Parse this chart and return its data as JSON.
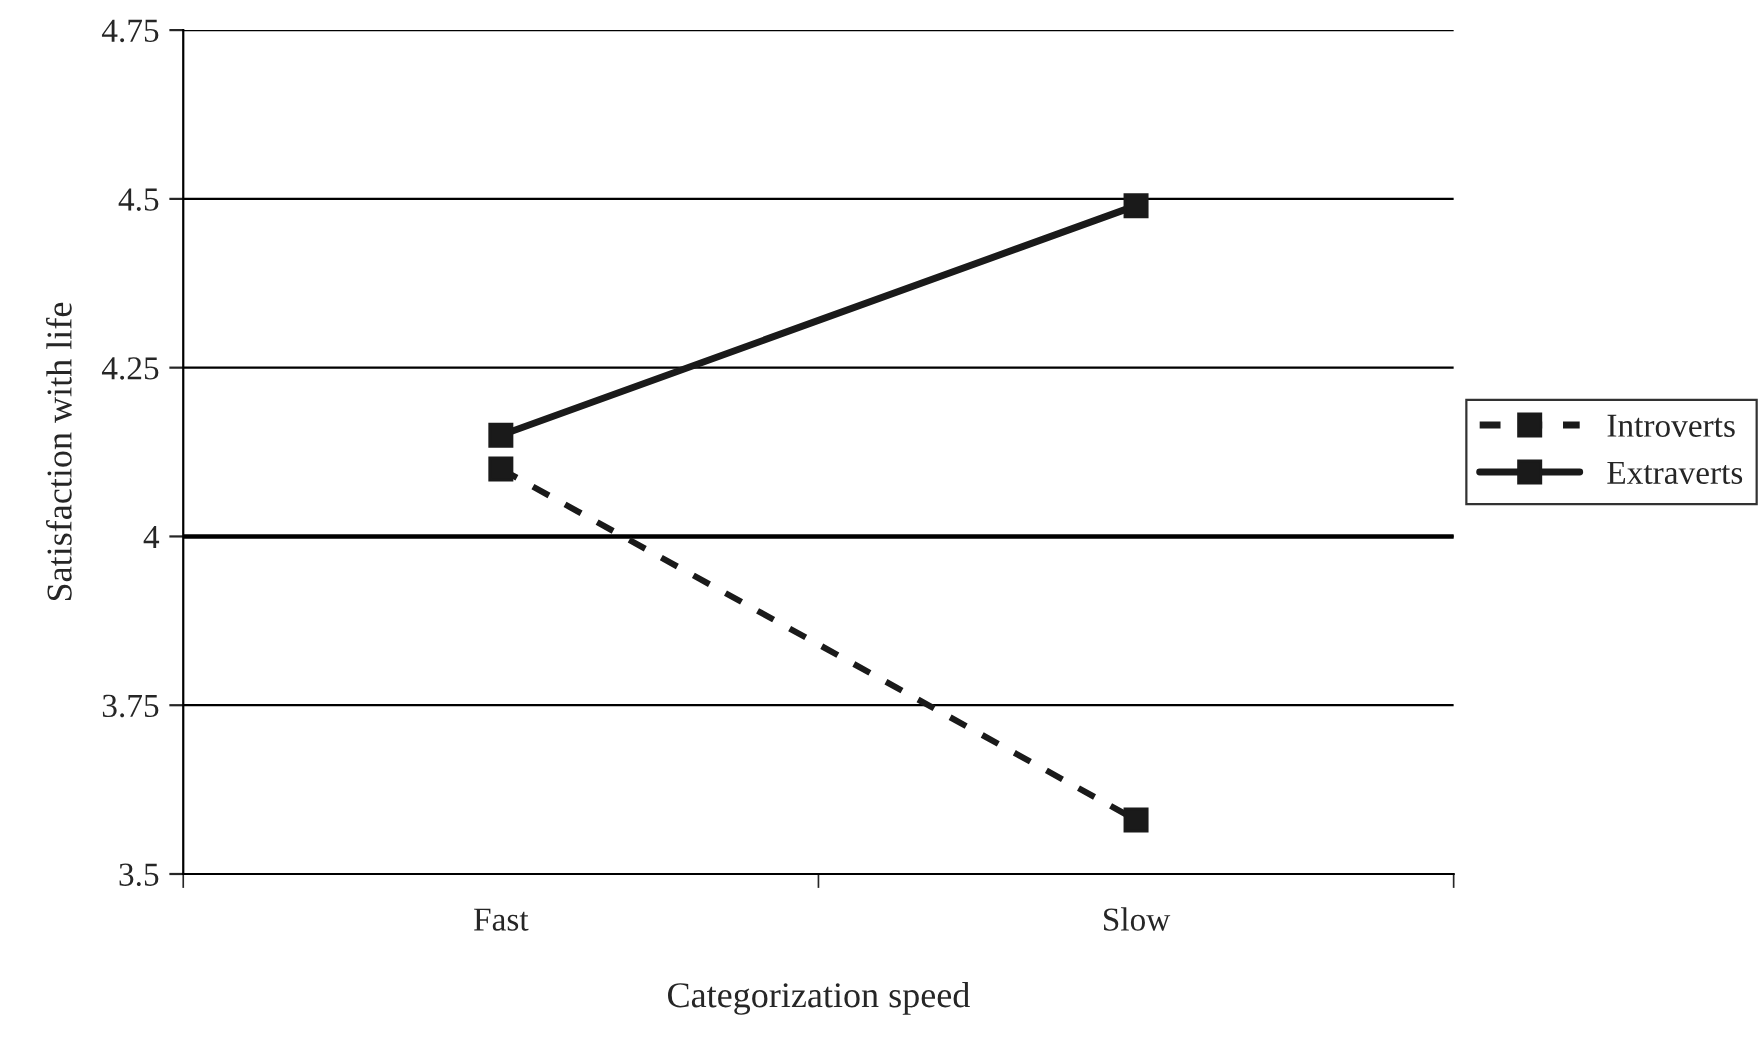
{
  "chart_data": {
    "type": "line",
    "xlabel": "Categorization speed",
    "ylabel": "Satisfaction with life",
    "categories": [
      "Fast",
      "Slow"
    ],
    "series": [
      {
        "name": "Introverts",
        "color": "#1a1a1a",
        "values": [
          4.1,
          3.58
        ],
        "line_style": "dashed"
      },
      {
        "name": "Extraverts",
        "color": "#1a1a1a",
        "values": [
          4.15,
          4.49
        ],
        "line_style": "solid"
      }
    ],
    "ylim": [
      3.5,
      4.75
    ],
    "yticks": [
      3.5,
      {
        "value": 3.75,
        "label": "3.75"
      },
      4,
      {
        "value": 4.25,
        "label": "4.25"
      },
      {
        "value": 4.5,
        "label": "4.5"
      },
      {
        "value": 4.75,
        "label": "4.75"
      }
    ],
    "ref_lines": [
      {
        "axis": "y",
        "value": 4,
        "color": "#000000"
      }
    ],
    "grid": "y",
    "legend": "right",
    "marker": "square"
  }
}
